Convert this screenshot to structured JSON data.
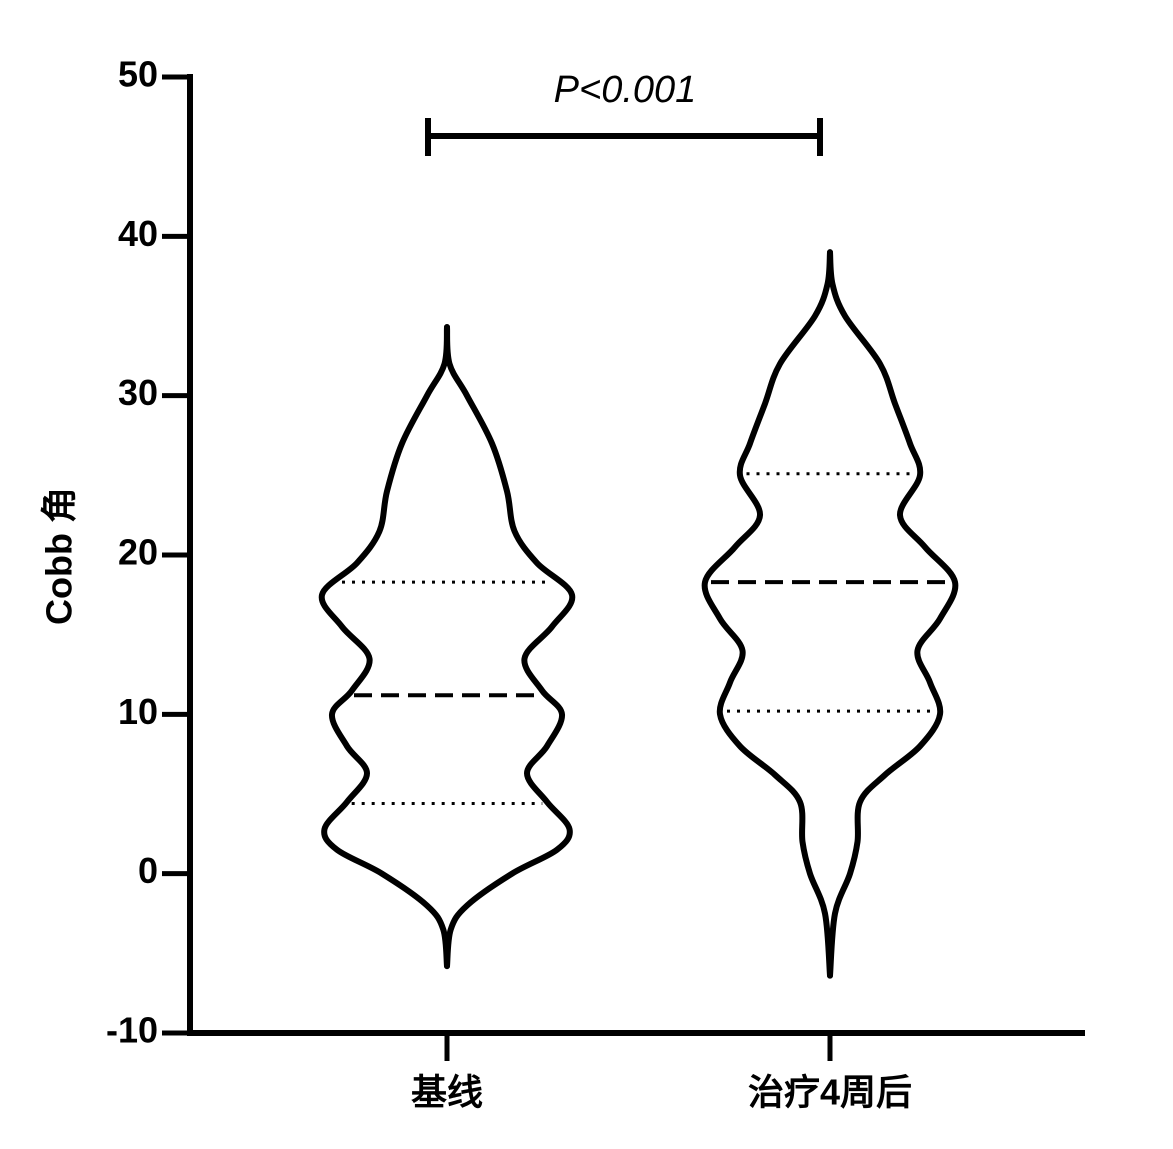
{
  "chart_data": {
    "type": "violin",
    "y_label": "Cobb 角",
    "annotation": "P<0.001",
    "categories": [
      "基线",
      "治疗4周后"
    ],
    "ylim": [
      -10,
      50
    ],
    "yticks": [
      -10,
      0,
      10,
      20,
      30,
      40,
      50
    ],
    "color": "#000000",
    "series": [
      {
        "median": 11.2,
        "q1": 4.4,
        "q3": 18.3,
        "density_y": [
          34.3,
          32,
          30,
          27,
          24,
          21.5,
          19.5,
          17.5,
          15.5,
          13.5,
          11.5,
          10,
          8,
          6.3,
          4.5,
          2.8,
          1.5,
          0,
          -2,
          -3.5,
          -5.8
        ],
        "density": [
          0,
          0.02,
          0.16,
          0.36,
          0.48,
          0.54,
          0.72,
          1.0,
          0.84,
          0.62,
          0.76,
          0.92,
          0.8,
          0.64,
          0.8,
          0.98,
          0.88,
          0.52,
          0.16,
          0.03,
          0
        ]
      },
      {
        "median": 18.3,
        "q1": 10.2,
        "q3": 25.1,
        "density_y": [
          39,
          37,
          35,
          32,
          29.5,
          27,
          25,
          22.5,
          20.5,
          18.3,
          16,
          14,
          12,
          10,
          8,
          6.2,
          4.5,
          2,
          0,
          -2.5,
          -6.4
        ],
        "density": [
          0,
          0.02,
          0.12,
          0.4,
          0.52,
          0.64,
          0.72,
          0.56,
          0.76,
          1.0,
          0.88,
          0.7,
          0.8,
          0.88,
          0.72,
          0.44,
          0.24,
          0.22,
          0.16,
          0.04,
          0
        ]
      }
    ]
  }
}
